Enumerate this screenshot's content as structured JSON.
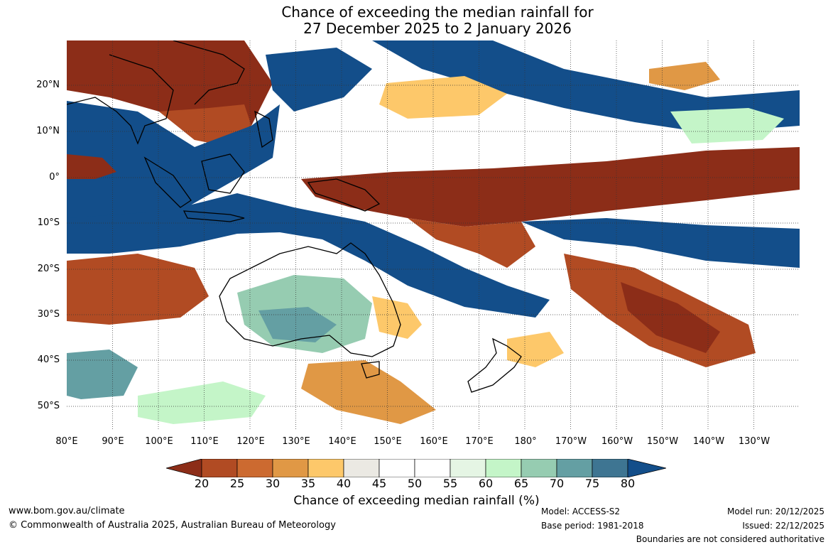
{
  "title": {
    "line1": "Chance of exceeding the median rainfall for",
    "line2": "27 December 2025 to 2 January 2026"
  },
  "axes": {
    "lat_labels": [
      "20°N",
      "10°N",
      "0°",
      "10°S",
      "20°S",
      "30°S",
      "40°S",
      "50°S"
    ],
    "lon_labels": [
      "80°E",
      "90°E",
      "100°E",
      "110°E",
      "120°E",
      "130°E",
      "140°E",
      "150°E",
      "160°E",
      "170°E",
      "180°",
      "170°W",
      "160°W",
      "150°W",
      "140°W",
      "130°W"
    ],
    "lon_range": [
      80,
      240
    ],
    "lat_range": [
      -55,
      30
    ]
  },
  "colorbar": {
    "ticks": [
      "20",
      "25",
      "30",
      "35",
      "40",
      "45",
      "50",
      "55",
      "60",
      "65",
      "70",
      "75",
      "80"
    ],
    "colors": [
      "#8c2d18",
      "#b14b23",
      "#cc6a30",
      "#e09845",
      "#fdc86a",
      "#ebe9e3",
      "#ffffff",
      "#ffffff",
      "#e5f5e4",
      "#c4f5c8",
      "#96ccb1",
      "#649fa3",
      "#3e7592",
      "#134e8a"
    ],
    "label": "Chance of exceeding median rainfall (%)"
  },
  "footer": {
    "website": "www.bom.gov.au/climate",
    "copyright": "© Commonwealth of Australia 2025, Australian Bureau of Meteorology",
    "model": "Model: ACCESS-S2",
    "base_period": "Base period: 1981-2018",
    "model_run": "Model run: 20/12/2025",
    "issued": "Issued: 22/12/2025",
    "disclaimer": "Boundaries are not considered authoritative"
  }
}
